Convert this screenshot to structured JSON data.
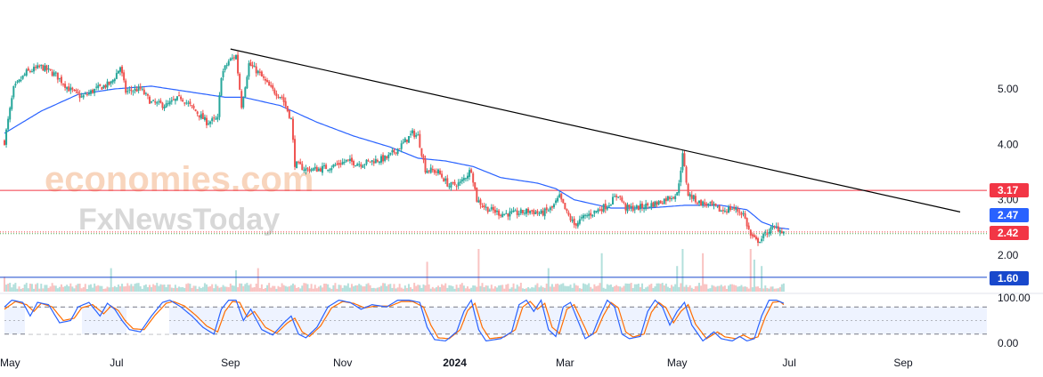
{
  "watermark": {
    "line1": "economies.com",
    "line2": "FxNewsToday"
  },
  "price_axis": {
    "ticks": [
      {
        "value": 5,
        "label": "5.00"
      },
      {
        "value": 4,
        "label": "4.00"
      },
      {
        "value": 3,
        "label": "3.00"
      },
      {
        "value": 2,
        "label": "2.00"
      }
    ]
  },
  "osc_axis": {
    "ticks": [
      {
        "value": 100,
        "label": "100.00"
      },
      {
        "value": 0,
        "label": "0.00"
      }
    ]
  },
  "time_axis": {
    "labels": [
      {
        "label": "May",
        "t": 0,
        "bold": false
      },
      {
        "label": "Jul",
        "t": 61,
        "bold": false
      },
      {
        "label": "Sep",
        "t": 123,
        "bold": false
      },
      {
        "label": "Nov",
        "t": 184,
        "bold": false
      },
      {
        "label": "2024",
        "t": 245,
        "bold": true
      },
      {
        "label": "Mar",
        "t": 305,
        "bold": false
      },
      {
        "label": "May",
        "t": 366,
        "bold": false
      },
      {
        "label": "Jul",
        "t": 427,
        "bold": false
      },
      {
        "label": "Sep",
        "t": 489,
        "bold": false
      }
    ]
  },
  "levels": [
    {
      "name": "resistance-line",
      "value": 3.17,
      "label": "3.17",
      "color": "#f23645"
    },
    {
      "name": "moving-average-level",
      "value": 2.47,
      "label": "2.47",
      "color": "#2962ff"
    },
    {
      "name": "last-price-level",
      "value": 2.42,
      "label": "2.42",
      "color": "#f23645"
    },
    {
      "name": "support-line",
      "value": 1.6,
      "label": "1.60",
      "color": "#1848cc"
    }
  ],
  "chart_data": {
    "type": "candlestick",
    "description_series": [
      "price",
      "moving_average",
      "volume",
      "stochastic_k",
      "stochastic_d"
    ],
    "price_range": [
      1.55,
      5.9
    ],
    "oscillator_range": [
      -20,
      110
    ],
    "oscillator_bands": [
      80,
      20
    ],
    "colors": {
      "up": "#26a69a",
      "down": "#ef5350",
      "ma": "#2962ff",
      "k": "#2962ff",
      "d": "#ff6d00",
      "trend": "#000000"
    },
    "trendline": {
      "from": {
        "t": 123,
        "price": 5.72
      },
      "to": {
        "t": 520,
        "price": 2.78
      }
    },
    "price_anchors": [
      [
        0,
        4.05
      ],
      [
        5,
        5.0
      ],
      [
        12,
        5.3
      ],
      [
        20,
        5.4
      ],
      [
        28,
        5.25
      ],
      [
        35,
        5.0
      ],
      [
        42,
        4.85
      ],
      [
        50,
        5.0
      ],
      [
        58,
        5.1
      ],
      [
        63,
        5.4
      ],
      [
        66,
        4.95
      ],
      [
        74,
        5.0
      ],
      [
        80,
        4.75
      ],
      [
        88,
        4.7
      ],
      [
        96,
        4.85
      ],
      [
        104,
        4.6
      ],
      [
        110,
        4.4
      ],
      [
        116,
        4.45
      ],
      [
        118,
        5.25
      ],
      [
        122,
        5.5
      ],
      [
        126,
        5.6
      ],
      [
        129,
        4.7
      ],
      [
        133,
        5.45
      ],
      [
        138,
        5.3
      ],
      [
        145,
        5.0
      ],
      [
        151,
        4.85
      ],
      [
        156,
        4.45
      ],
      [
        158,
        3.65
      ],
      [
        164,
        3.55
      ],
      [
        170,
        3.55
      ],
      [
        178,
        3.6
      ],
      [
        186,
        3.7
      ],
      [
        194,
        3.65
      ],
      [
        200,
        3.7
      ],
      [
        208,
        3.75
      ],
      [
        215,
        3.95
      ],
      [
        222,
        4.2
      ],
      [
        225,
        4.15
      ],
      [
        229,
        3.55
      ],
      [
        236,
        3.5
      ],
      [
        242,
        3.25
      ],
      [
        248,
        3.3
      ],
      [
        254,
        3.55
      ],
      [
        257,
        3.0
      ],
      [
        262,
        2.85
      ],
      [
        270,
        2.75
      ],
      [
        278,
        2.75
      ],
      [
        286,
        2.8
      ],
      [
        292,
        2.75
      ],
      [
        298,
        2.85
      ],
      [
        302,
        3.05
      ],
      [
        306,
        2.75
      ],
      [
        310,
        2.55
      ],
      [
        316,
        2.7
      ],
      [
        322,
        2.8
      ],
      [
        328,
        2.9
      ],
      [
        334,
        3.1
      ],
      [
        338,
        2.85
      ],
      [
        344,
        2.85
      ],
      [
        350,
        2.9
      ],
      [
        356,
        2.95
      ],
      [
        362,
        3.05
      ],
      [
        366,
        3.1
      ],
      [
        369,
        3.8
      ],
      [
        372,
        3.1
      ],
      [
        378,
        2.95
      ],
      [
        384,
        2.9
      ],
      [
        390,
        2.8
      ],
      [
        396,
        2.85
      ],
      [
        402,
        2.75
      ],
      [
        406,
        2.35
      ],
      [
        409,
        2.25
      ],
      [
        412,
        2.3
      ],
      [
        416,
        2.45
      ],
      [
        420,
        2.5
      ],
      [
        424,
        2.42
      ]
    ],
    "ma_anchors": [
      [
        0,
        4.2
      ],
      [
        20,
        4.6
      ],
      [
        40,
        4.9
      ],
      [
        60,
        5.0
      ],
      [
        80,
        5.05
      ],
      [
        100,
        4.95
      ],
      [
        120,
        4.85
      ],
      [
        130,
        4.85
      ],
      [
        150,
        4.7
      ],
      [
        170,
        4.4
      ],
      [
        190,
        4.15
      ],
      [
        210,
        3.95
      ],
      [
        225,
        3.75
      ],
      [
        240,
        3.7
      ],
      [
        255,
        3.6
      ],
      [
        270,
        3.4
      ],
      [
        290,
        3.3
      ],
      [
        300,
        3.2
      ],
      [
        310,
        3.0
      ],
      [
        330,
        2.85
      ],
      [
        350,
        2.85
      ],
      [
        370,
        2.9
      ],
      [
        390,
        2.9
      ],
      [
        404,
        2.82
      ],
      [
        412,
        2.6
      ],
      [
        420,
        2.5
      ],
      [
        427,
        2.47
      ]
    ],
    "stoch_k_anchors": [
      [
        0,
        80
      ],
      [
        4,
        95
      ],
      [
        10,
        90
      ],
      [
        14,
        60
      ],
      [
        18,
        90
      ],
      [
        24,
        85
      ],
      [
        30,
        45
      ],
      [
        36,
        50
      ],
      [
        40,
        80
      ],
      [
        46,
        90
      ],
      [
        52,
        60
      ],
      [
        56,
        88
      ],
      [
        60,
        75
      ],
      [
        64,
        50
      ],
      [
        68,
        30
      ],
      [
        74,
        25
      ],
      [
        80,
        60
      ],
      [
        86,
        90
      ],
      [
        90,
        95
      ],
      [
        96,
        80
      ],
      [
        102,
        60
      ],
      [
        108,
        35
      ],
      [
        114,
        20
      ],
      [
        118,
        75
      ],
      [
        122,
        95
      ],
      [
        126,
        95
      ],
      [
        130,
        50
      ],
      [
        134,
        75
      ],
      [
        140,
        30
      ],
      [
        146,
        18
      ],
      [
        152,
        45
      ],
      [
        156,
        60
      ],
      [
        160,
        20
      ],
      [
        164,
        12
      ],
      [
        170,
        35
      ],
      [
        176,
        80
      ],
      [
        182,
        95
      ],
      [
        188,
        90
      ],
      [
        194,
        75
      ],
      [
        200,
        85
      ],
      [
        208,
        80
      ],
      [
        214,
        95
      ],
      [
        220,
        95
      ],
      [
        226,
        90
      ],
      [
        230,
        35
      ],
      [
        234,
        8
      ],
      [
        240,
        5
      ],
      [
        246,
        25
      ],
      [
        250,
        70
      ],
      [
        254,
        95
      ],
      [
        258,
        30
      ],
      [
        262,
        5
      ],
      [
        270,
        10
      ],
      [
        276,
        25
      ],
      [
        280,
        85
      ],
      [
        284,
        95
      ],
      [
        288,
        70
      ],
      [
        292,
        95
      ],
      [
        296,
        30
      ],
      [
        300,
        15
      ],
      [
        304,
        80
      ],
      [
        308,
        90
      ],
      [
        312,
        50
      ],
      [
        316,
        10
      ],
      [
        320,
        20
      ],
      [
        324,
        60
      ],
      [
        328,
        95
      ],
      [
        332,
        80
      ],
      [
        336,
        20
      ],
      [
        340,
        10
      ],
      [
        346,
        15
      ],
      [
        350,
        70
      ],
      [
        354,
        95
      ],
      [
        358,
        80
      ],
      [
        362,
        40
      ],
      [
        366,
        70
      ],
      [
        370,
        90
      ],
      [
        374,
        40
      ],
      [
        380,
        5
      ],
      [
        386,
        25
      ],
      [
        390,
        10
      ],
      [
        396,
        5
      ],
      [
        400,
        15
      ],
      [
        404,
        5
      ],
      [
        408,
        10
      ],
      [
        412,
        60
      ],
      [
        416,
        95
      ],
      [
        420,
        95
      ],
      [
        424,
        88
      ]
    ],
    "stoch_d_anchors": [
      [
        0,
        75
      ],
      [
        6,
        92
      ],
      [
        12,
        85
      ],
      [
        16,
        70
      ],
      [
        20,
        88
      ],
      [
        26,
        80
      ],
      [
        32,
        50
      ],
      [
        38,
        55
      ],
      [
        42,
        78
      ],
      [
        48,
        85
      ],
      [
        54,
        65
      ],
      [
        58,
        82
      ],
      [
        62,
        72
      ],
      [
        66,
        48
      ],
      [
        70,
        32
      ],
      [
        76,
        30
      ],
      [
        82,
        62
      ],
      [
        88,
        88
      ],
      [
        92,
        92
      ],
      [
        98,
        82
      ],
      [
        104,
        62
      ],
      [
        110,
        38
      ],
      [
        116,
        25
      ],
      [
        120,
        70
      ],
      [
        124,
        92
      ],
      [
        128,
        90
      ],
      [
        132,
        58
      ],
      [
        136,
        70
      ],
      [
        142,
        35
      ],
      [
        148,
        22
      ],
      [
        154,
        45
      ],
      [
        158,
        55
      ],
      [
        162,
        25
      ],
      [
        166,
        15
      ],
      [
        172,
        38
      ],
      [
        178,
        78
      ],
      [
        184,
        92
      ],
      [
        190,
        88
      ],
      [
        196,
        78
      ],
      [
        202,
        82
      ],
      [
        210,
        82
      ],
      [
        216,
        92
      ],
      [
        222,
        92
      ],
      [
        228,
        80
      ],
      [
        232,
        40
      ],
      [
        236,
        12
      ],
      [
        242,
        10
      ],
      [
        248,
        30
      ],
      [
        252,
        72
      ],
      [
        256,
        88
      ],
      [
        260,
        35
      ],
      [
        264,
        10
      ],
      [
        272,
        14
      ],
      [
        278,
        30
      ],
      [
        282,
        80
      ],
      [
        286,
        92
      ],
      [
        290,
        75
      ],
      [
        294,
        88
      ],
      [
        298,
        35
      ],
      [
        302,
        22
      ],
      [
        306,
        75
      ],
      [
        310,
        85
      ],
      [
        314,
        50
      ],
      [
        318,
        15
      ],
      [
        322,
        25
      ],
      [
        326,
        62
      ],
      [
        330,
        90
      ],
      [
        334,
        78
      ],
      [
        338,
        25
      ],
      [
        342,
        14
      ],
      [
        348,
        20
      ],
      [
        352,
        68
      ],
      [
        356,
        90
      ],
      [
        360,
        78
      ],
      [
        364,
        45
      ],
      [
        368,
        70
      ],
      [
        372,
        85
      ],
      [
        376,
        42
      ],
      [
        382,
        10
      ],
      [
        388,
        25
      ],
      [
        392,
        14
      ],
      [
        398,
        10
      ],
      [
        402,
        18
      ],
      [
        406,
        10
      ],
      [
        410,
        14
      ],
      [
        414,
        58
      ],
      [
        418,
        90
      ],
      [
        422,
        92
      ],
      [
        424,
        85
      ]
    ],
    "volume_spikes": [
      [
        0,
        0.35
      ],
      [
        58,
        0.55
      ],
      [
        126,
        0.5
      ],
      [
        138,
        0.55
      ],
      [
        230,
        0.7
      ],
      [
        258,
        1.0
      ],
      [
        296,
        0.55
      ],
      [
        325,
        0.9
      ],
      [
        366,
        0.6
      ],
      [
        369,
        1.0
      ],
      [
        380,
        0.9
      ],
      [
        406,
        1.0
      ],
      [
        408,
        0.75
      ],
      [
        412,
        0.6
      ]
    ],
    "time_domain": [
      0,
      520
    ]
  }
}
